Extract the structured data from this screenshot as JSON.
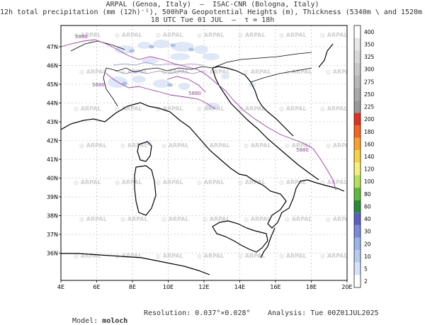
{
  "header": {
    "line1": "ARPAL (Genoa, Italy)  –  ISAC-CNR (Bologna, Italy)",
    "line2": "12h total precipitation (mm (12h)⁻¹), 500hPa Geopotential Heights (m), Thickness (5340m \\ and 1520m /)",
    "line3": "18 UTC Tue 01 JUL  –  τ = 18h"
  },
  "map": {
    "lat_labels": [
      "47N",
      "46N",
      "45N",
      "44N",
      "43N",
      "42N",
      "41N",
      "40N",
      "39N",
      "38N",
      "37N",
      "36N"
    ],
    "lon_labels": [
      "4E",
      "6E",
      "8E",
      "10E",
      "12E",
      "14E",
      "16E",
      "18E",
      "20E"
    ],
    "watermark": "ARPAL",
    "contour_labels": [
      "5880",
      "5880",
      "5880",
      "5880"
    ],
    "contour_color": "#a040b0"
  },
  "colorbar": {
    "levels": [
      "400",
      "350",
      "325",
      "300",
      "275",
      "250",
      "225",
      "200",
      "180",
      "160",
      "140",
      "120",
      "100",
      "80",
      "60",
      "40",
      "30",
      "20",
      "10",
      "5",
      "2"
    ],
    "colors": [
      "#ffffff",
      "#e8e8e8",
      "#d8d8d8",
      "#c8c8c8",
      "#b8b8b8",
      "#a9a9a9",
      "#999999",
      "#dd3322",
      "#f26622",
      "#f8a030",
      "#f6d24a",
      "#f4f080",
      "#b4e060",
      "#60b840",
      "#2a8a3a",
      "#5a60c0",
      "#7a8ad8",
      "#9ab4e6",
      "#b8cdee",
      "#d6e2f6",
      "#ffffff"
    ]
  },
  "footer": {
    "model_label": "Model:",
    "model_value": "moloch",
    "resolution": "Resolution: 0.037°×0.028°",
    "analysis": "Analysis: Tue 00Z01JUL2025"
  }
}
